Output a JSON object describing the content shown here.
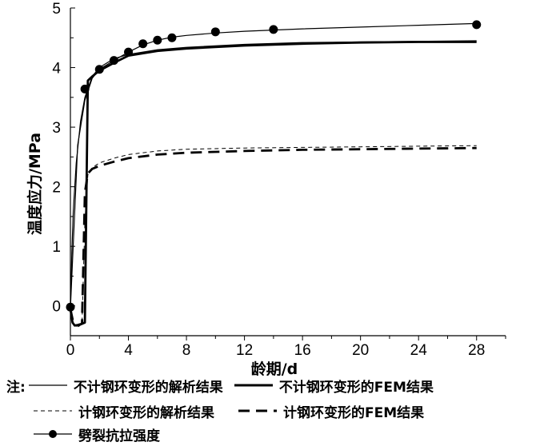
{
  "chart_data": {
    "type": "line",
    "xlabel": "龄期/d",
    "ylabel": "温度应力/MPa",
    "xlim": [
      0,
      30
    ],
    "ylim": [
      -0.5,
      5
    ],
    "xticks": [
      0,
      4,
      8,
      12,
      16,
      20,
      24,
      28
    ],
    "yticks": [
      0,
      1,
      2,
      3,
      4,
      5
    ],
    "grid": false,
    "legend_position": "bottom",
    "legend_prefix": "注:",
    "series": [
      {
        "name": "不计钢环变形的解析结果",
        "style": "thin-solid",
        "x": [
          0,
          0.1,
          0.2,
          0.4,
          0.7,
          1.0,
          1.5,
          2,
          3,
          4,
          6,
          8,
          12,
          16,
          20,
          24,
          28
        ],
        "y": [
          -0.05,
          0.9,
          1.6,
          2.4,
          3.1,
          3.5,
          3.85,
          4.0,
          4.15,
          4.22,
          4.3,
          4.34,
          4.39,
          4.42,
          4.43,
          4.44,
          4.45
        ]
      },
      {
        "name": "不计钢环变形的FEM结果",
        "style": "thick-solid",
        "x": [
          0,
          0.15,
          0.3,
          0.5,
          0.8,
          1.0,
          1.2,
          1.5,
          2,
          3,
          4,
          6,
          8,
          12,
          16,
          20,
          24,
          28
        ],
        "y": [
          -0.05,
          -0.28,
          -0.33,
          -0.32,
          -0.3,
          -0.28,
          3.78,
          3.85,
          3.95,
          4.08,
          4.2,
          4.28,
          4.32,
          4.37,
          4.4,
          4.42,
          4.43,
          4.43
        ]
      },
      {
        "name": "计钢环变形的解析结果",
        "style": "thin-dashed",
        "x": [
          0,
          0.2,
          0.4,
          0.6,
          0.8,
          1.0,
          1.2,
          1.5,
          2,
          3,
          4,
          6,
          8,
          12,
          16,
          20,
          24,
          28
        ],
        "y": [
          -0.05,
          -0.3,
          -0.36,
          -0.34,
          -0.3,
          1.4,
          2.2,
          2.32,
          2.4,
          2.48,
          2.54,
          2.6,
          2.63,
          2.65,
          2.66,
          2.67,
          2.68,
          2.69
        ]
      },
      {
        "name": "计钢环变形的FEM结果",
        "style": "thick-dashed",
        "x": [
          0,
          0.2,
          0.4,
          0.6,
          0.8,
          1.0,
          1.2,
          1.5,
          2,
          3,
          4,
          6,
          8,
          12,
          16,
          20,
          24,
          28
        ],
        "y": [
          -0.05,
          -0.28,
          -0.33,
          -0.32,
          -0.3,
          1.9,
          2.22,
          2.3,
          2.35,
          2.42,
          2.48,
          2.54,
          2.57,
          2.6,
          2.62,
          2.63,
          2.64,
          2.65
        ]
      },
      {
        "name": "劈裂抗拉强度",
        "style": "thin-solid-markers",
        "x": [
          0,
          0.5,
          1,
          1.5,
          2,
          3,
          4,
          5,
          6,
          7,
          8,
          10,
          12,
          14,
          16,
          20,
          24,
          28
        ],
        "y": [
          -0.05,
          2.7,
          3.45,
          3.82,
          3.97,
          4.12,
          4.26,
          4.38,
          4.46,
          4.51,
          4.54,
          4.58,
          4.61,
          4.63,
          4.65,
          4.68,
          4.71,
          4.74
        ],
        "marker_x": [
          0,
          1,
          2,
          3,
          4,
          5,
          6,
          7,
          10,
          14,
          28
        ],
        "marker_y": [
          -0.02,
          3.64,
          3.97,
          4.12,
          4.26,
          4.4,
          4.46,
          4.5,
          4.6,
          4.64,
          4.72
        ]
      }
    ]
  }
}
